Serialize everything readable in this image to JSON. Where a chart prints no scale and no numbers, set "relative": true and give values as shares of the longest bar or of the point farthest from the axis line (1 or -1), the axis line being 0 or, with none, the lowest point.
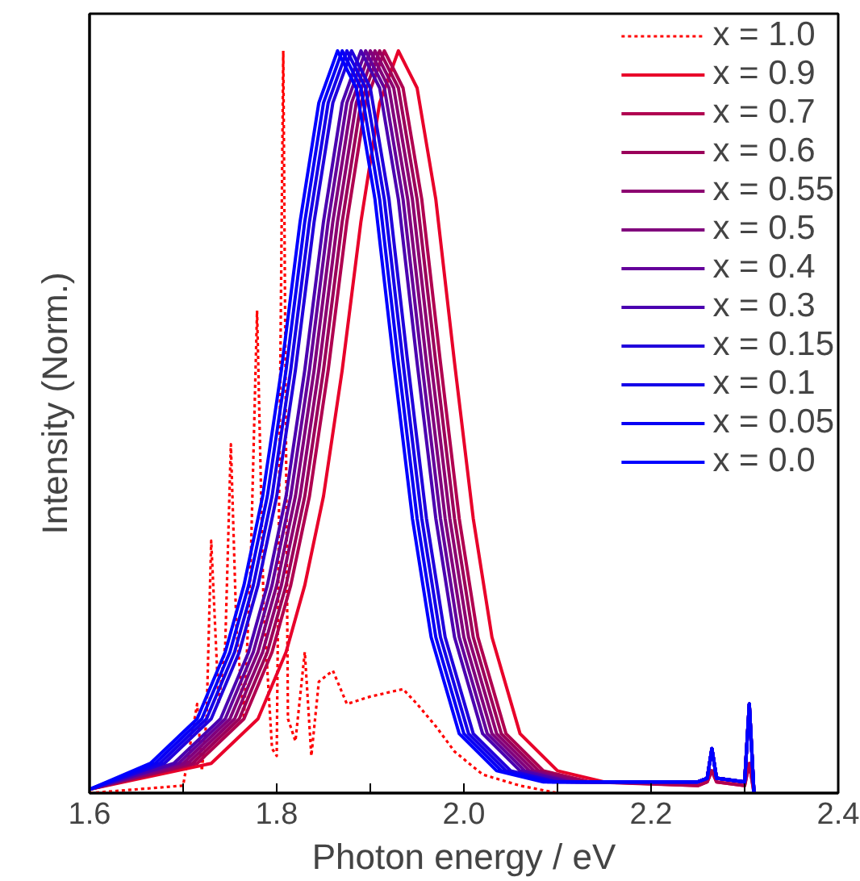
{
  "chart_data": {
    "type": "line",
    "relative": true,
    "xlabel": "Photon energy / eV",
    "ylabel": "Intensity (Norm.)",
    "xlim": [
      1.6,
      2.4
    ],
    "xticks": [
      {
        "value": 1.6,
        "label": "1.6"
      },
      {
        "value": 1.7,
        "label": null
      },
      {
        "value": 1.8,
        "label": "1.8"
      },
      {
        "value": 1.9,
        "label": null
      },
      {
        "value": 2.0,
        "label": "2.0"
      },
      {
        "value": 2.1,
        "label": null
      },
      {
        "value": 2.2,
        "label": "2.2"
      },
      {
        "value": 2.3,
        "label": null
      },
      {
        "value": 2.4,
        "label": "2.4"
      }
    ],
    "legend": "top right",
    "grid": false,
    "series": [
      {
        "name": "x = 1.0",
        "color": "#ff0000",
        "line_style": "dotted",
        "x": [
          1.6,
          1.7,
          1.715,
          1.72,
          1.725,
          1.73,
          1.738,
          1.745,
          1.751,
          1.757,
          1.765,
          1.772,
          1.779,
          1.786,
          1.795,
          1.8,
          1.807,
          1.812,
          1.82,
          1.83,
          1.837,
          1.845,
          1.86,
          1.875,
          1.9,
          1.935,
          1.95,
          1.97,
          1.99,
          2.02,
          2.06,
          2.1
        ],
        "values": [
          0.0,
          0.01,
          0.12,
          0.03,
          0.1,
          0.34,
          0.12,
          0.2,
          0.47,
          0.22,
          0.1,
          0.3,
          0.65,
          0.25,
          0.06,
          0.05,
          1.0,
          0.1,
          0.07,
          0.19,
          0.05,
          0.15,
          0.165,
          0.12,
          0.13,
          0.14,
          0.12,
          0.09,
          0.056,
          0.025,
          0.01,
          0.0
        ]
      },
      {
        "name": "x = 0.9",
        "color": "#e8002a",
        "x": [
          1.6,
          1.73,
          1.78,
          1.81,
          1.83,
          1.85,
          1.87,
          1.89,
          1.91,
          1.93,
          1.95,
          1.97,
          1.99,
          2.01,
          2.03,
          2.06,
          2.1,
          2.15,
          2.25,
          2.26,
          2.265,
          2.27,
          2.3,
          2.305,
          2.31
        ],
        "values": [
          0.005,
          0.04,
          0.1,
          0.19,
          0.28,
          0.4,
          0.57,
          0.77,
          0.93,
          1.0,
          0.95,
          0.8,
          0.58,
          0.37,
          0.21,
          0.08,
          0.03,
          0.015,
          0.01,
          0.015,
          0.03,
          0.015,
          0.01,
          0.04,
          0.0
        ]
      },
      {
        "name": "x = 0.7",
        "color": "#b00050",
        "x": [
          1.6,
          1.715,
          1.765,
          1.795,
          1.815,
          1.835,
          1.855,
          1.875,
          1.895,
          1.915,
          1.935,
          1.955,
          1.975,
          1.995,
          2.015,
          2.045,
          2.085,
          2.135,
          2.25,
          2.26,
          2.265,
          2.27,
          2.3,
          2.305,
          2.31
        ],
        "values": [
          0.005,
          0.04,
          0.1,
          0.19,
          0.28,
          0.4,
          0.57,
          0.77,
          0.93,
          1.0,
          0.95,
          0.8,
          0.58,
          0.37,
          0.21,
          0.08,
          0.03,
          0.015,
          0.01,
          0.015,
          0.03,
          0.015,
          0.01,
          0.04,
          0.0
        ]
      },
      {
        "name": "x = 0.6",
        "color": "#9a005a",
        "x": [
          1.6,
          1.71,
          1.76,
          1.79,
          1.81,
          1.83,
          1.85,
          1.87,
          1.89,
          1.91,
          1.93,
          1.95,
          1.97,
          1.99,
          2.01,
          2.04,
          2.08,
          2.13,
          2.25,
          2.26,
          2.265,
          2.27,
          2.3,
          2.305,
          2.31
        ],
        "values": [
          0.005,
          0.04,
          0.1,
          0.19,
          0.28,
          0.4,
          0.57,
          0.77,
          0.93,
          1.0,
          0.95,
          0.8,
          0.58,
          0.37,
          0.21,
          0.08,
          0.03,
          0.015,
          0.015,
          0.02,
          0.06,
          0.02,
          0.015,
          0.12,
          0.0
        ]
      },
      {
        "name": "x = 0.55",
        "color": "#8c0070",
        "x": [
          1.6,
          1.705,
          1.755,
          1.785,
          1.805,
          1.825,
          1.845,
          1.865,
          1.885,
          1.905,
          1.925,
          1.945,
          1.965,
          1.985,
          2.005,
          2.035,
          2.075,
          2.125,
          2.25,
          2.26,
          2.265,
          2.27,
          2.3,
          2.305,
          2.31
        ],
        "values": [
          0.005,
          0.04,
          0.1,
          0.19,
          0.28,
          0.4,
          0.57,
          0.77,
          0.93,
          1.0,
          0.95,
          0.8,
          0.58,
          0.37,
          0.21,
          0.08,
          0.03,
          0.015,
          0.015,
          0.02,
          0.06,
          0.02,
          0.015,
          0.12,
          0.0
        ]
      },
      {
        "name": "x = 0.5",
        "color": "#80007c",
        "x": [
          1.6,
          1.7,
          1.75,
          1.78,
          1.8,
          1.82,
          1.84,
          1.86,
          1.88,
          1.9,
          1.92,
          1.94,
          1.96,
          1.98,
          2.0,
          2.03,
          2.07,
          2.12,
          2.25,
          2.26,
          2.265,
          2.27,
          2.3,
          2.305,
          2.31
        ],
        "values": [
          0.005,
          0.04,
          0.1,
          0.19,
          0.28,
          0.4,
          0.57,
          0.77,
          0.93,
          1.0,
          0.95,
          0.8,
          0.58,
          0.37,
          0.21,
          0.08,
          0.03,
          0.015,
          0.015,
          0.02,
          0.06,
          0.02,
          0.015,
          0.12,
          0.0
        ]
      },
      {
        "name": "x = 0.4",
        "color": "#64009a",
        "x": [
          1.6,
          1.695,
          1.745,
          1.775,
          1.795,
          1.815,
          1.835,
          1.855,
          1.875,
          1.895,
          1.915,
          1.935,
          1.955,
          1.975,
          1.995,
          2.025,
          2.065,
          2.115,
          2.25,
          2.26,
          2.265,
          2.27,
          2.3,
          2.305,
          2.31
        ],
        "values": [
          0.005,
          0.04,
          0.1,
          0.19,
          0.28,
          0.4,
          0.57,
          0.77,
          0.93,
          1.0,
          0.95,
          0.8,
          0.58,
          0.37,
          0.21,
          0.08,
          0.03,
          0.015,
          0.015,
          0.02,
          0.06,
          0.02,
          0.015,
          0.12,
          0.0
        ]
      },
      {
        "name": "x = 0.3",
        "color": "#4a00b0",
        "x": [
          1.6,
          1.69,
          1.74,
          1.77,
          1.79,
          1.81,
          1.83,
          1.85,
          1.87,
          1.89,
          1.91,
          1.93,
          1.95,
          1.97,
          1.99,
          2.02,
          2.06,
          2.11,
          2.25,
          2.26,
          2.265,
          2.27,
          2.3,
          2.305,
          2.31
        ],
        "values": [
          0.005,
          0.04,
          0.1,
          0.19,
          0.28,
          0.4,
          0.57,
          0.77,
          0.93,
          1.0,
          0.95,
          0.8,
          0.58,
          0.37,
          0.21,
          0.08,
          0.03,
          0.015,
          0.015,
          0.02,
          0.06,
          0.02,
          0.015,
          0.12,
          0.0
        ]
      },
      {
        "name": "x = 0.15",
        "color": "#2000dc",
        "x": [
          1.6,
          1.68,
          1.73,
          1.76,
          1.78,
          1.8,
          1.82,
          1.84,
          1.86,
          1.88,
          1.9,
          1.92,
          1.94,
          1.96,
          1.98,
          2.01,
          2.05,
          2.1,
          2.25,
          2.26,
          2.265,
          2.27,
          2.3,
          2.305,
          2.31
        ],
        "values": [
          0.005,
          0.04,
          0.1,
          0.19,
          0.28,
          0.4,
          0.57,
          0.77,
          0.93,
          1.0,
          0.95,
          0.8,
          0.58,
          0.37,
          0.21,
          0.08,
          0.03,
          0.015,
          0.015,
          0.02,
          0.06,
          0.02,
          0.015,
          0.12,
          0.0
        ]
      },
      {
        "name": "x = 0.1",
        "color": "#1400e8",
        "x": [
          1.6,
          1.675,
          1.725,
          1.755,
          1.775,
          1.795,
          1.815,
          1.835,
          1.855,
          1.875,
          1.895,
          1.915,
          1.935,
          1.955,
          1.975,
          2.005,
          2.045,
          2.095,
          2.25,
          2.26,
          2.265,
          2.27,
          2.3,
          2.305,
          2.31
        ],
        "values": [
          0.005,
          0.04,
          0.1,
          0.19,
          0.28,
          0.4,
          0.57,
          0.77,
          0.93,
          1.0,
          0.95,
          0.8,
          0.58,
          0.37,
          0.21,
          0.08,
          0.03,
          0.015,
          0.015,
          0.02,
          0.06,
          0.02,
          0.015,
          0.12,
          0.0
        ]
      },
      {
        "name": "x = 0.05",
        "color": "#0800f4",
        "x": [
          1.6,
          1.67,
          1.72,
          1.75,
          1.77,
          1.79,
          1.81,
          1.83,
          1.85,
          1.87,
          1.89,
          1.91,
          1.93,
          1.95,
          1.97,
          2.0,
          2.04,
          2.09,
          2.25,
          2.26,
          2.265,
          2.27,
          2.3,
          2.305,
          2.31
        ],
        "values": [
          0.005,
          0.04,
          0.1,
          0.19,
          0.28,
          0.4,
          0.57,
          0.77,
          0.93,
          1.0,
          0.95,
          0.8,
          0.58,
          0.37,
          0.21,
          0.08,
          0.03,
          0.015,
          0.015,
          0.02,
          0.06,
          0.02,
          0.015,
          0.12,
          0.0
        ]
      },
      {
        "name": "x = 0.0",
        "color": "#0000ff",
        "x": [
          1.6,
          1.665,
          1.715,
          1.745,
          1.765,
          1.785,
          1.805,
          1.825,
          1.845,
          1.865,
          1.885,
          1.905,
          1.925,
          1.945,
          1.965,
          1.995,
          2.035,
          2.085,
          2.25,
          2.26,
          2.265,
          2.27,
          2.3,
          2.305,
          2.31
        ],
        "values": [
          0.005,
          0.04,
          0.1,
          0.19,
          0.28,
          0.4,
          0.57,
          0.77,
          0.93,
          1.0,
          0.95,
          0.8,
          0.58,
          0.37,
          0.21,
          0.08,
          0.03,
          0.015,
          0.015,
          0.02,
          0.06,
          0.02,
          0.015,
          0.12,
          0.0
        ]
      }
    ]
  }
}
